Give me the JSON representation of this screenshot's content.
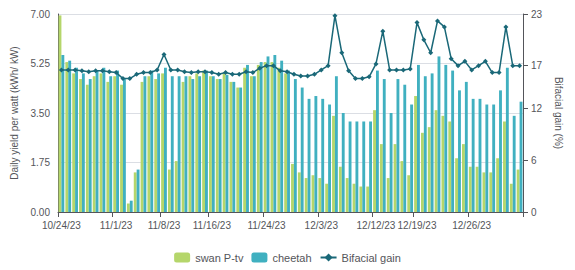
{
  "chart_data": {
    "type": "bar",
    "categories": [
      "10/24/23",
      null,
      null,
      null,
      null,
      null,
      null,
      null,
      "11/1/23",
      null,
      null,
      null,
      null,
      null,
      null,
      "11/8/23",
      null,
      null,
      null,
      null,
      null,
      null,
      "11/16/23",
      null,
      null,
      null,
      null,
      null,
      null,
      null,
      "11/24/23",
      null,
      null,
      null,
      null,
      null,
      null,
      null,
      "12/3/23",
      null,
      null,
      null,
      null,
      null,
      null,
      null,
      "12/12/23",
      null,
      null,
      null,
      null,
      null,
      "12/19/23",
      null,
      null,
      null,
      null,
      null,
      null,
      null,
      "12/26/23",
      null,
      null,
      null,
      null,
      null,
      null,
      null
    ],
    "series": [
      {
        "name": "swan P-tv",
        "type": "bar",
        "color": "#b5d66b",
        "values": [
          6.95,
          5.3,
          4.9,
          4.7,
          4.5,
          4.8,
          4.9,
          4.6,
          4.8,
          4.5,
          0.3,
          1.4,
          4.6,
          4.8,
          4.7,
          4.9,
          1.5,
          1.8,
          4.6,
          4.8,
          4.9,
          5.0,
          4.8,
          4.7,
          4.9,
          4.6,
          4.4,
          5.1,
          4.8,
          5.2,
          5.3,
          5.3,
          5.1,
          4.9,
          1.7,
          1.4,
          1.2,
          1.3,
          1.2,
          1.0,
          3.4,
          1.6,
          1.2,
          1.0,
          0.9,
          0.9,
          3.6,
          2.4,
          1.2,
          2.4,
          1.8,
          1.3,
          4.1,
          2.8,
          3.0,
          3.6,
          3.4,
          3.2,
          1.9,
          2.4,
          1.6,
          1.6,
          1.4,
          1.4,
          1.9,
          3.2,
          1.0,
          1.5
        ]
      },
      {
        "name": "cheetah",
        "type": "bar",
        "color": "#40b0c0",
        "values": [
          5.55,
          5.35,
          5.1,
          4.9,
          4.7,
          5.0,
          5.1,
          4.8,
          5.0,
          4.7,
          0.4,
          1.5,
          4.8,
          5.0,
          4.9,
          5.1,
          4.8,
          4.8,
          4.8,
          4.7,
          4.8,
          5.0,
          4.8,
          4.7,
          4.85,
          4.6,
          4.4,
          5.2,
          4.8,
          5.3,
          5.5,
          5.55,
          5.35,
          5.0,
          4.7,
          4.4,
          4.0,
          4.1,
          4.0,
          3.8,
          4.8,
          3.5,
          3.2,
          3.2,
          3.2,
          3.2,
          5.0,
          4.7,
          3.5,
          4.7,
          4.5,
          3.8,
          5.2,
          4.8,
          4.9,
          5.5,
          5.2,
          5.0,
          4.3,
          4.6,
          4.0,
          4.0,
          3.8,
          3.8,
          4.3,
          5.1,
          3.4,
          3.9
        ]
      },
      {
        "name": "Bifacial gain",
        "type": "line",
        "color": "#1a6878",
        "marker": "diamond",
        "axis": "y2",
        "values": [
          16.5,
          16.5,
          16.5,
          16.4,
          16.3,
          16.4,
          16.4,
          16.3,
          16.2,
          15.5,
          15.5,
          16.0,
          16.2,
          16.2,
          16.5,
          18.3,
          16.5,
          16.5,
          16.3,
          16.2,
          16.3,
          16.3,
          16.2,
          16.0,
          16.2,
          16.0,
          16.0,
          16.3,
          16.2,
          16.7,
          17.0,
          17.0,
          16.4,
          16.3,
          16.0,
          15.8,
          15.8,
          16.0,
          16.5,
          17.0,
          22.8,
          18.5,
          16.4,
          15.5,
          15.5,
          15.7,
          17.2,
          21.0,
          16.5,
          16.5,
          16.5,
          16.6,
          22.0,
          20.0,
          18.5,
          22.2,
          21.5,
          17.8,
          17.0,
          17.5,
          16.5,
          17.0,
          17.5,
          16.2,
          16.2,
          21.5,
          17.0,
          17.0
        ]
      }
    ],
    "ylabel": "Daily yield per watt (kWh/ kW)",
    "y2label": "Bifacial gain (%)",
    "ylim": [
      0,
      7.0
    ],
    "yticks": [
      {
        "value": 0,
        "label": "0.00"
      },
      {
        "value": 1.75,
        "label": "1.75"
      },
      {
        "value": 3.5,
        "label": "3.50"
      },
      {
        "value": 5.25,
        "label": "5.25"
      },
      {
        "value": 7.0,
        "label": "7.00"
      }
    ],
    "y2lim": [
      0,
      23
    ],
    "y2ticks": [
      0,
      6,
      12,
      17,
      23
    ],
    "grid": true,
    "legend": "bottom"
  }
}
